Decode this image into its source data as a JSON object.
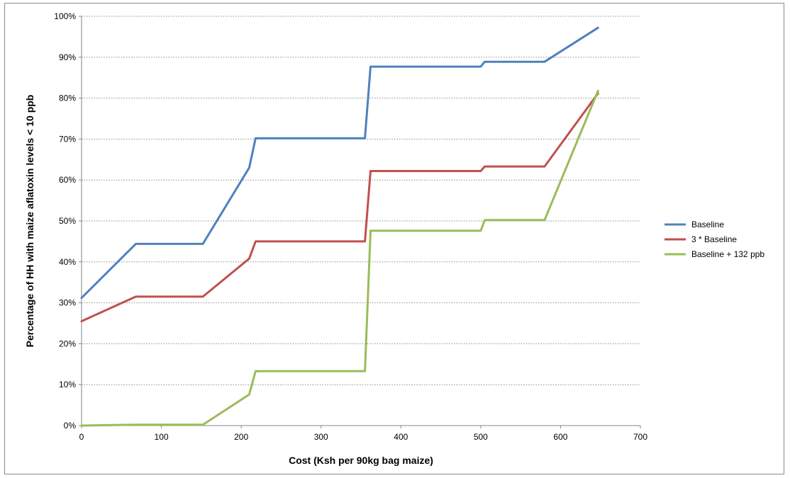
{
  "chart_data": {
    "type": "line",
    "title": "",
    "xlabel": "Cost (Ksh per 90kg bag maize)",
    "ylabel": "Percentage of HH with maize aflatoxin levels < 10 ppb",
    "xlim": [
      0,
      700
    ],
    "ylim": [
      0,
      100
    ],
    "x_ticks": [
      0,
      100,
      200,
      300,
      400,
      500,
      600,
      700
    ],
    "y_ticks": [
      0,
      10,
      20,
      30,
      40,
      50,
      60,
      70,
      80,
      90,
      100
    ],
    "x_tick_labels": [
      "0",
      "100",
      "200",
      "300",
      "400",
      "500",
      "600",
      "700"
    ],
    "y_tick_labels": [
      "0%",
      "10%",
      "20%",
      "30%",
      "40%",
      "50%",
      "60%",
      "70%",
      "80%",
      "90%",
      "100%"
    ],
    "grid": "horizontal dotted",
    "legend_position": "right",
    "series": [
      {
        "name": "Baseline",
        "color": "#4f81bd",
        "points": [
          [
            0,
            31.2
          ],
          [
            68,
            44.4
          ],
          [
            152,
            44.4
          ],
          [
            210,
            63
          ],
          [
            218,
            70.2
          ],
          [
            355,
            70.2
          ],
          [
            362,
            87.7
          ],
          [
            500,
            87.7
          ],
          [
            505,
            88.9
          ],
          [
            580,
            88.9
          ],
          [
            647,
            97.2
          ]
        ]
      },
      {
        "name": "3 * Baseline",
        "color": "#c0504d",
        "points": [
          [
            0,
            25.5
          ],
          [
            68,
            31.5
          ],
          [
            152,
            31.5
          ],
          [
            210,
            40.8
          ],
          [
            218,
            45
          ],
          [
            355,
            45
          ],
          [
            362,
            62.2
          ],
          [
            500,
            62.2
          ],
          [
            505,
            63.3
          ],
          [
            580,
            63.3
          ],
          [
            647,
            81.2
          ]
        ]
      },
      {
        "name": "Baseline + 132 ppb",
        "color": "#9bbb59",
        "points": [
          [
            0,
            0
          ],
          [
            68,
            0.2
          ],
          [
            152,
            0.2
          ],
          [
            210,
            7.6
          ],
          [
            218,
            13.3
          ],
          [
            355,
            13.3
          ],
          [
            362,
            47.6
          ],
          [
            500,
            47.6
          ],
          [
            505,
            50.2
          ],
          [
            580,
            50.2
          ],
          [
            647,
            81.8
          ]
        ]
      }
    ]
  }
}
